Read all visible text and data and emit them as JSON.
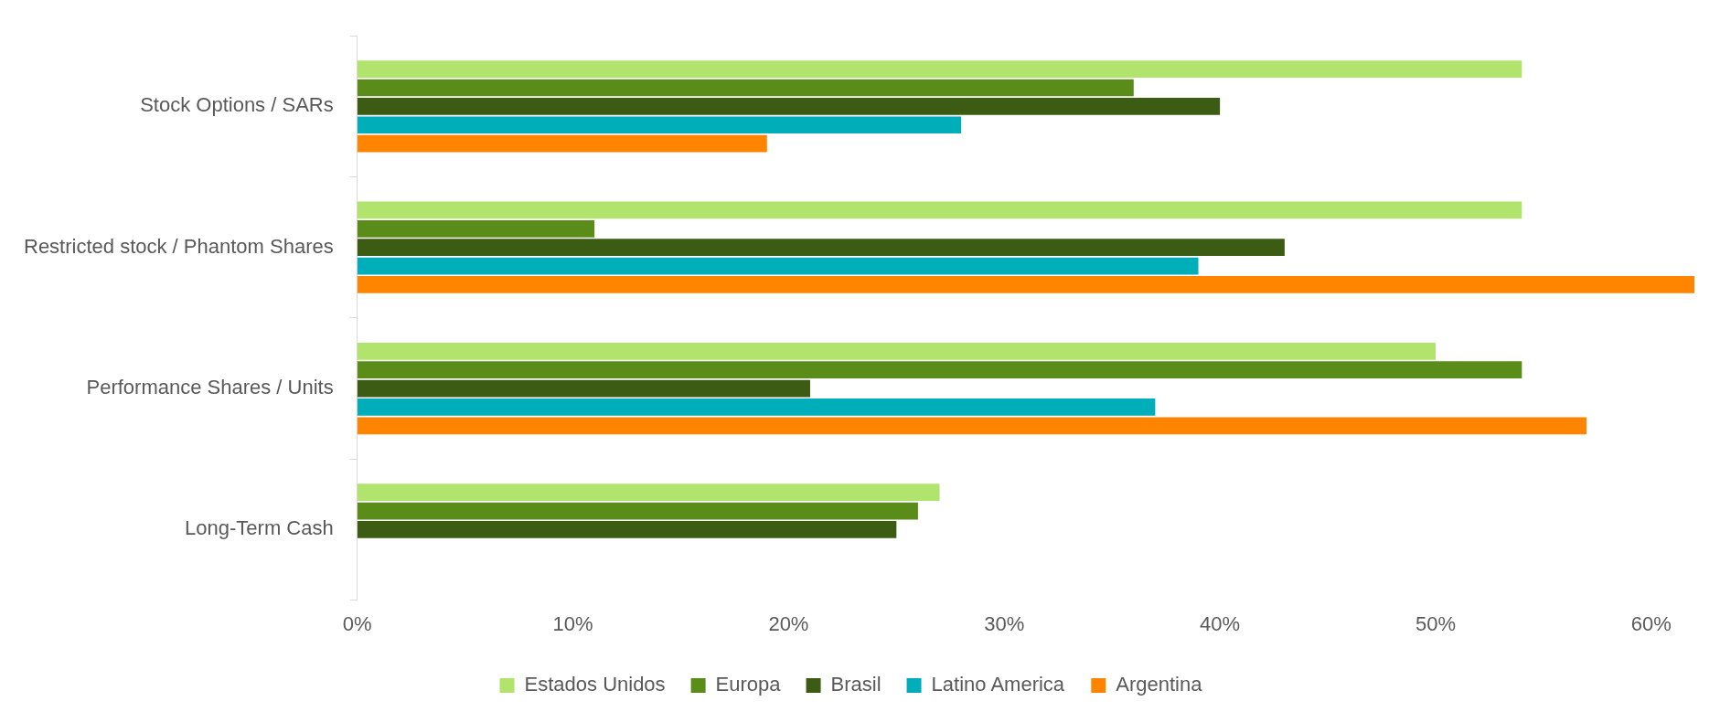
{
  "chart_data": {
    "type": "bar",
    "orientation": "horizontal",
    "categories": [
      "Stock Options / SARs",
      "Restricted stock / Phantom Shares",
      "Performance Shares / Units",
      "Long-Term Cash"
    ],
    "series": [
      {
        "name": "Estados Unidos",
        "color": "#b0e46c",
        "values": [
          54,
          54,
          50,
          27
        ]
      },
      {
        "name": "Europa",
        "color": "#5a8c1a",
        "values": [
          36,
          11,
          54,
          26
        ]
      },
      {
        "name": "Brasil",
        "color": "#3b5c12",
        "values": [
          40,
          43,
          21,
          25
        ]
      },
      {
        "name": "Latino America",
        "color": "#00aeba",
        "values": [
          28,
          39,
          37,
          null
        ]
      },
      {
        "name": "Argentina",
        "color": "#ff8500",
        "values": [
          19,
          62,
          57,
          null
        ]
      }
    ],
    "xlim": [
      0,
      62
    ],
    "xticks": [
      {
        "value": 0,
        "label": "0%"
      },
      {
        "value": 10,
        "label": "10%"
      },
      {
        "value": 20,
        "label": "20%"
      },
      {
        "value": 30,
        "label": "30%"
      },
      {
        "value": 40,
        "label": "40%"
      },
      {
        "value": 50,
        "label": "50%"
      },
      {
        "value": 60,
        "label": "60%"
      }
    ],
    "grid": false,
    "legend": "bottom"
  }
}
